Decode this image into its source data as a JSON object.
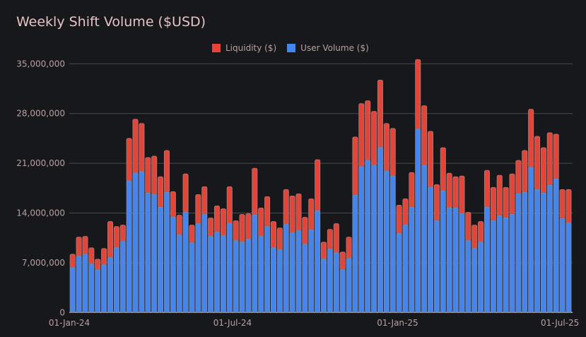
{
  "chart_data": {
    "type": "bar",
    "stacked": true,
    "title": "Weekly Shift Volume ($USD)",
    "xlabel": "",
    "ylabel": "",
    "ylim": [
      0,
      35000000
    ],
    "y_ticks": [
      "0",
      "7,000,000",
      "14,000,000",
      "21,000,000",
      "28,000,000",
      "35,000,000"
    ],
    "y_tick_values": [
      0,
      7000000,
      14000000,
      21000000,
      28000000,
      35000000
    ],
    "x_ticks": [
      "01-Jan-24",
      "01-Jul-24",
      "01-Jan-25",
      "01-Jul-25"
    ],
    "x_tick_dates": [
      "2024-01-01",
      "2024-07-01",
      "2025-01-01",
      "2025-07-01"
    ],
    "grid": true,
    "legend_position": "top-center",
    "background": "#17181c",
    "x": [
      "2024-01-01",
      "2024-01-08",
      "2024-01-15",
      "2024-01-22",
      "2024-01-29",
      "2024-02-05",
      "2024-02-12",
      "2024-02-19",
      "2024-02-26",
      "2024-03-04",
      "2024-03-11",
      "2024-03-18",
      "2024-03-25",
      "2024-04-01",
      "2024-04-08",
      "2024-04-15",
      "2024-04-22",
      "2024-04-29",
      "2024-05-06",
      "2024-05-13",
      "2024-05-20",
      "2024-05-27",
      "2024-06-03",
      "2024-06-10",
      "2024-06-17",
      "2024-06-24",
      "2024-07-01",
      "2024-07-08",
      "2024-07-15",
      "2024-07-22",
      "2024-07-29",
      "2024-08-05",
      "2024-08-12",
      "2024-08-19",
      "2024-08-26",
      "2024-09-02",
      "2024-09-09",
      "2024-09-16",
      "2024-09-23",
      "2024-09-30",
      "2024-10-07",
      "2024-10-14",
      "2024-10-21",
      "2024-10-28",
      "2024-11-04",
      "2024-11-11",
      "2024-11-18",
      "2024-11-25",
      "2024-12-02",
      "2024-12-09",
      "2024-12-16",
      "2024-12-23",
      "2024-12-30",
      "2025-01-06",
      "2025-01-13",
      "2025-01-20",
      "2025-01-27",
      "2025-02-03",
      "2025-02-10",
      "2025-02-17",
      "2025-02-24",
      "2025-03-03",
      "2025-03-10",
      "2025-03-17",
      "2025-03-24",
      "2025-03-31",
      "2025-04-07",
      "2025-04-14",
      "2025-04-21",
      "2025-04-28",
      "2025-05-05",
      "2025-05-12",
      "2025-05-19",
      "2025-05-26",
      "2025-06-02",
      "2025-06-09",
      "2025-06-16",
      "2025-06-23",
      "2025-06-30",
      "2025-07-07"
    ],
    "series": [
      {
        "name": "User Volume ($)",
        "color": "#4285f4",
        "values": [
          6300000,
          7900000,
          8200000,
          6800000,
          6000000,
          6700000,
          7700000,
          9100000,
          10000000,
          18500000,
          19600000,
          19800000,
          16800000,
          16600000,
          14800000,
          16900000,
          13400000,
          10900000,
          14100000,
          9800000,
          12500000,
          13800000,
          10700000,
          11300000,
          10800000,
          12500000,
          10100000,
          9900000,
          10300000,
          13700000,
          10700000,
          12100000,
          9100000,
          8800000,
          12400000,
          11200000,
          11500000,
          9600000,
          11600000,
          14300000,
          7500000,
          8900000,
          8400000,
          6000000,
          7600000,
          16500000,
          20500000,
          21400000,
          20700000,
          23200000,
          19900000,
          19200000,
          11100000,
          12300000,
          14800000,
          25800000,
          20700000,
          17600000,
          12900000,
          17100000,
          14700000,
          14700000,
          13900000,
          10100000,
          9000000,
          9900000,
          14800000,
          12900000,
          13600000,
          13300000,
          13800000,
          16700000,
          16900000,
          20400000,
          17300000,
          16800000,
          17900000,
          18800000,
          13200000,
          12600000
        ]
      },
      {
        "name": "Liquidity ($)",
        "color": "#ea4335",
        "values": [
          1900000,
          2700000,
          2500000,
          2300000,
          1500000,
          2300000,
          5100000,
          3000000,
          2300000,
          6000000,
          7600000,
          6800000,
          5000000,
          5400000,
          4300000,
          5900000,
          3600000,
          2800000,
          5400000,
          2500000,
          4100000,
          3900000,
          2600000,
          3700000,
          3800000,
          5200000,
          2800000,
          3900000,
          3600000,
          6600000,
          4000000,
          4200000,
          3700000,
          3100000,
          4900000,
          5200000,
          5200000,
          3800000,
          4400000,
          7200000,
          2400000,
          2800000,
          4100000,
          2500000,
          3000000,
          8200000,
          8900000,
          8400000,
          7600000,
          9500000,
          6700000,
          6700000,
          4000000,
          3700000,
          4900000,
          9800000,
          8400000,
          7900000,
          5100000,
          6100000,
          4900000,
          4400000,
          5300000,
          4000000,
          3300000,
          2900000,
          5200000,
          4700000,
          5700000,
          4300000,
          5700000,
          4700000,
          5900000,
          8200000,
          7500000,
          6400000,
          7400000,
          6300000,
          4100000,
          4700000
        ]
      }
    ]
  }
}
